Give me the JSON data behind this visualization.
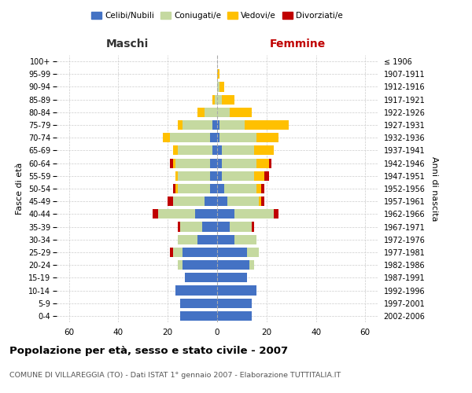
{
  "age_groups": [
    "0-4",
    "5-9",
    "10-14",
    "15-19",
    "20-24",
    "25-29",
    "30-34",
    "35-39",
    "40-44",
    "45-49",
    "50-54",
    "55-59",
    "60-64",
    "65-69",
    "70-74",
    "75-79",
    "80-84",
    "85-89",
    "90-94",
    "95-99",
    "100+"
  ],
  "birth_years": [
    "2002-2006",
    "1997-2001",
    "1992-1996",
    "1987-1991",
    "1982-1986",
    "1977-1981",
    "1972-1976",
    "1967-1971",
    "1962-1966",
    "1957-1961",
    "1952-1956",
    "1947-1951",
    "1942-1946",
    "1937-1941",
    "1932-1936",
    "1927-1931",
    "1922-1926",
    "1917-1921",
    "1912-1916",
    "1907-1911",
    "≤ 1906"
  ],
  "maschi": {
    "celibi": [
      15,
      15,
      17,
      13,
      14,
      14,
      8,
      6,
      9,
      5,
      3,
      3,
      3,
      2,
      3,
      2,
      0,
      0,
      0,
      0,
      0
    ],
    "coniugati": [
      0,
      0,
      0,
      0,
      2,
      4,
      8,
      9,
      15,
      13,
      13,
      13,
      14,
      14,
      16,
      12,
      5,
      1,
      0,
      0,
      0
    ],
    "vedovi": [
      0,
      0,
      0,
      0,
      0,
      0,
      0,
      0,
      0,
      0,
      1,
      1,
      1,
      2,
      3,
      2,
      3,
      1,
      0,
      0,
      0
    ],
    "divorziati": [
      0,
      0,
      0,
      0,
      0,
      1,
      0,
      1,
      2,
      2,
      1,
      0,
      1,
      0,
      0,
      0,
      0,
      0,
      0,
      0,
      0
    ]
  },
  "femmine": {
    "nubili": [
      14,
      14,
      16,
      12,
      13,
      12,
      7,
      5,
      7,
      4,
      3,
      2,
      2,
      2,
      1,
      1,
      0,
      0,
      0,
      0,
      0
    ],
    "coniugate": [
      0,
      0,
      0,
      0,
      2,
      5,
      9,
      9,
      16,
      13,
      13,
      13,
      14,
      13,
      15,
      10,
      5,
      2,
      1,
      0,
      0
    ],
    "vedove": [
      0,
      0,
      0,
      0,
      0,
      0,
      0,
      0,
      0,
      1,
      2,
      4,
      5,
      8,
      9,
      18,
      9,
      5,
      2,
      1,
      0
    ],
    "divorziate": [
      0,
      0,
      0,
      0,
      0,
      0,
      0,
      1,
      2,
      1,
      1,
      2,
      1,
      0,
      0,
      0,
      0,
      0,
      0,
      0,
      0
    ]
  },
  "colors": {
    "celibi": "#4472c4",
    "coniugati": "#c5d9a0",
    "vedovi": "#ffc000",
    "divorziati": "#c00000"
  },
  "xlim": 65,
  "title": "Popolazione per età, sesso e stato civile - 2007",
  "subtitle": "COMUNE DI VILLAREGGIA (TO) - Dati ISTAT 1° gennaio 2007 - Elaborazione TUTTITALIA.IT",
  "ylabel_left": "Fasce di età",
  "ylabel_right": "Anni di nascita",
  "xlabel_left": "Maschi",
  "xlabel_right": "Femmine",
  "legend_labels": [
    "Celibi/Nubili",
    "Coniugati/e",
    "Vedovi/e",
    "Divorziati/e"
  ],
  "background_color": "#ffffff",
  "grid_color": "#cccccc"
}
